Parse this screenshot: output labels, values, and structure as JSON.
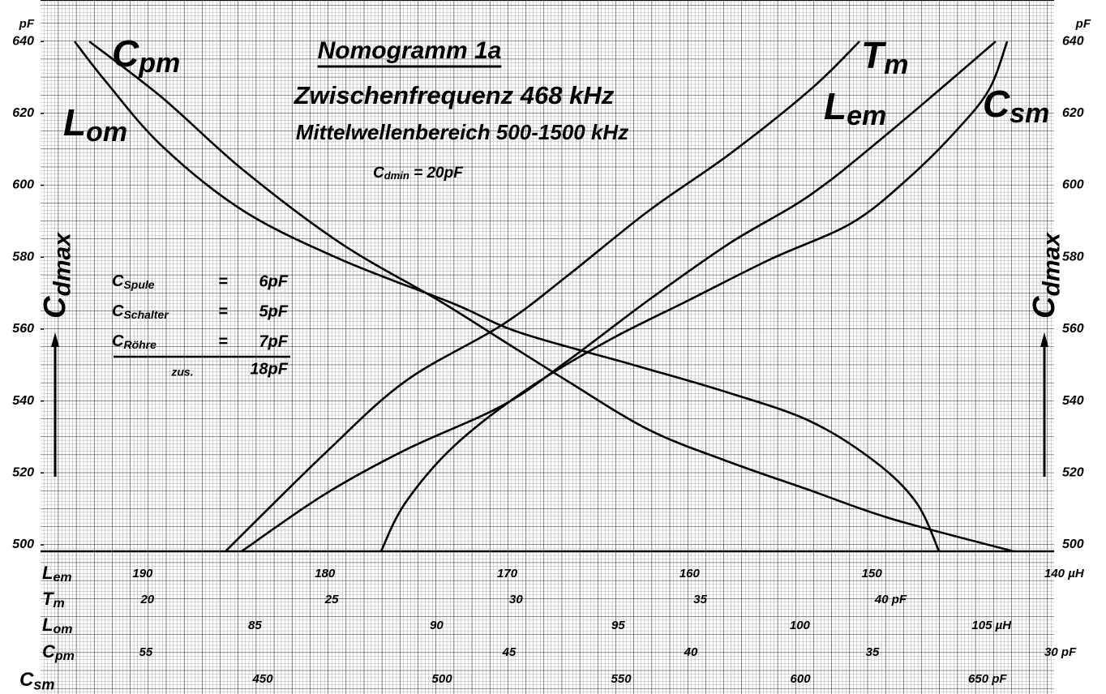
{
  "chart_data": {
    "type": "line",
    "title": "Nomogramm 1a",
    "subtitle": "Zwischenfrequenz 468 kHz",
    "subtitle2": "Mittelwellenbereich 500-1500 kHz",
    "note": {
      "main": "C",
      "sub": "dmin",
      "rest": " = 20pF"
    },
    "y_unit": "pF",
    "y_label": {
      "main": "C",
      "sub": "dmax"
    },
    "ylim": [
      498.2,
      650.4
    ],
    "yticks": [
      500,
      520,
      540,
      560,
      580,
      600,
      620,
      640
    ],
    "x_label": {
      "main": "C",
      "sub": "sm"
    },
    "xlim": [
      388.0,
      670.8
    ],
    "xticks": [
      450,
      500,
      550,
      600,
      {
        "value": 650,
        "label": "650 pF"
      }
    ],
    "scales": [
      {
        "label": {
          "main": "L",
          "sub": "em"
        },
        "lim": [
          195.6,
          140
        ],
        "ticks": [
          190,
          180,
          170,
          160,
          150,
          {
            "value": 140,
            "label": "140 µH"
          }
        ]
      },
      {
        "label": {
          "main": "T",
          "sub": "m"
        },
        "lim": [
          17.1,
          44.6
        ],
        "ticks": [
          20,
          25,
          30,
          35,
          {
            "value": 40,
            "label": "40 pF"
          }
        ]
      },
      {
        "label": {
          "main": "L",
          "sub": "om"
        },
        "lim": [
          79.1,
          107.0
        ],
        "ticks": [
          85,
          90,
          95,
          100,
          {
            "value": 105,
            "label": "105 µH"
          }
        ]
      },
      {
        "label": {
          "main": "C",
          "sub": "pm"
        },
        "lim": [
          57.9,
          30
        ],
        "ticks": [
          55,
          45,
          40,
          35,
          {
            "value": 30,
            "label": "30 pF"
          }
        ]
      }
    ],
    "capacities": {
      "rows": [
        {
          "main": "C",
          "sub": "Spule",
          "eq": "=",
          "value": "6pF"
        },
        {
          "main": "C",
          "sub": "Schalter",
          "eq": "=",
          "value": "5pF"
        },
        {
          "main": "C",
          "sub": "Röhre",
          "eq": "=",
          "value": "7pF"
        }
      ],
      "sum_label": "zus.",
      "sum": "18pF"
    },
    "series": [
      {
        "label": {
          "main": "L",
          "sub": "om"
        },
        "color": "#000000",
        "x": [
          397.5,
          406.1,
          421.9,
          444.6,
          471.7,
          503.4,
          521.5,
          553.2,
          580.3,
          602.9,
          621.0,
          632.4,
          638.7
        ],
        "values": [
          640,
          629.0,
          610.9,
          592.9,
          579.4,
          567.0,
          559.1,
          550.1,
          542.2,
          534.3,
          523.0,
          511.7,
          498.2
        ]
      },
      {
        "label": {
          "main": "C",
          "sub": "pm"
        },
        "color": "#000000",
        "x": [
          401.6,
          421.9,
          444.6,
          471.7,
          498.9,
          517.0,
          535.1,
          557.7,
          580.3,
          602.9,
          625.6,
          659.5
        ],
        "values": [
          640,
          624.4,
          604.2,
          583.9,
          568.1,
          556.8,
          545.5,
          532.0,
          523.0,
          515.1,
          507.2,
          498.2
        ]
      },
      {
        "label": {
          "main": "T",
          "sub": "m"
        },
        "color": "#000000",
        "x": [
          439.6,
          467.2,
          489.8,
          517.0,
          535.1,
          557.7,
          580.3,
          602.9,
          616.5
        ],
        "values": [
          498.2,
          525.3,
          545.5,
          561.3,
          574.9,
          592.9,
          608.7,
          626.7,
          640
        ]
      },
      {
        "label": {
          "main": "L",
          "sub": "em"
        },
        "color": "#000000",
        "x": [
          444.1,
          467.2,
          489.8,
          517.0,
          535.1,
          557.7,
          580.3,
          602.9,
          625.6,
          654.5
        ],
        "values": [
          498.2,
          514.0,
          526.4,
          538.8,
          551.2,
          568.1,
          583.9,
          597.4,
          615.4,
          640
        ]
      },
      {
        "label": {
          "main": "C",
          "sub": "sm"
        },
        "color": "#000000",
        "x": [
          483.0,
          489.8,
          503.4,
          523.8,
          546.4,
          569.0,
          591.6,
          614.3,
          630.1,
          643.7,
          652.7,
          657.7
        ],
        "values": [
          498.2,
          511.7,
          527.5,
          543.3,
          556.8,
          568.1,
          579.4,
          589.5,
          601.9,
          615.4,
          626.7,
          640
        ]
      }
    ]
  }
}
